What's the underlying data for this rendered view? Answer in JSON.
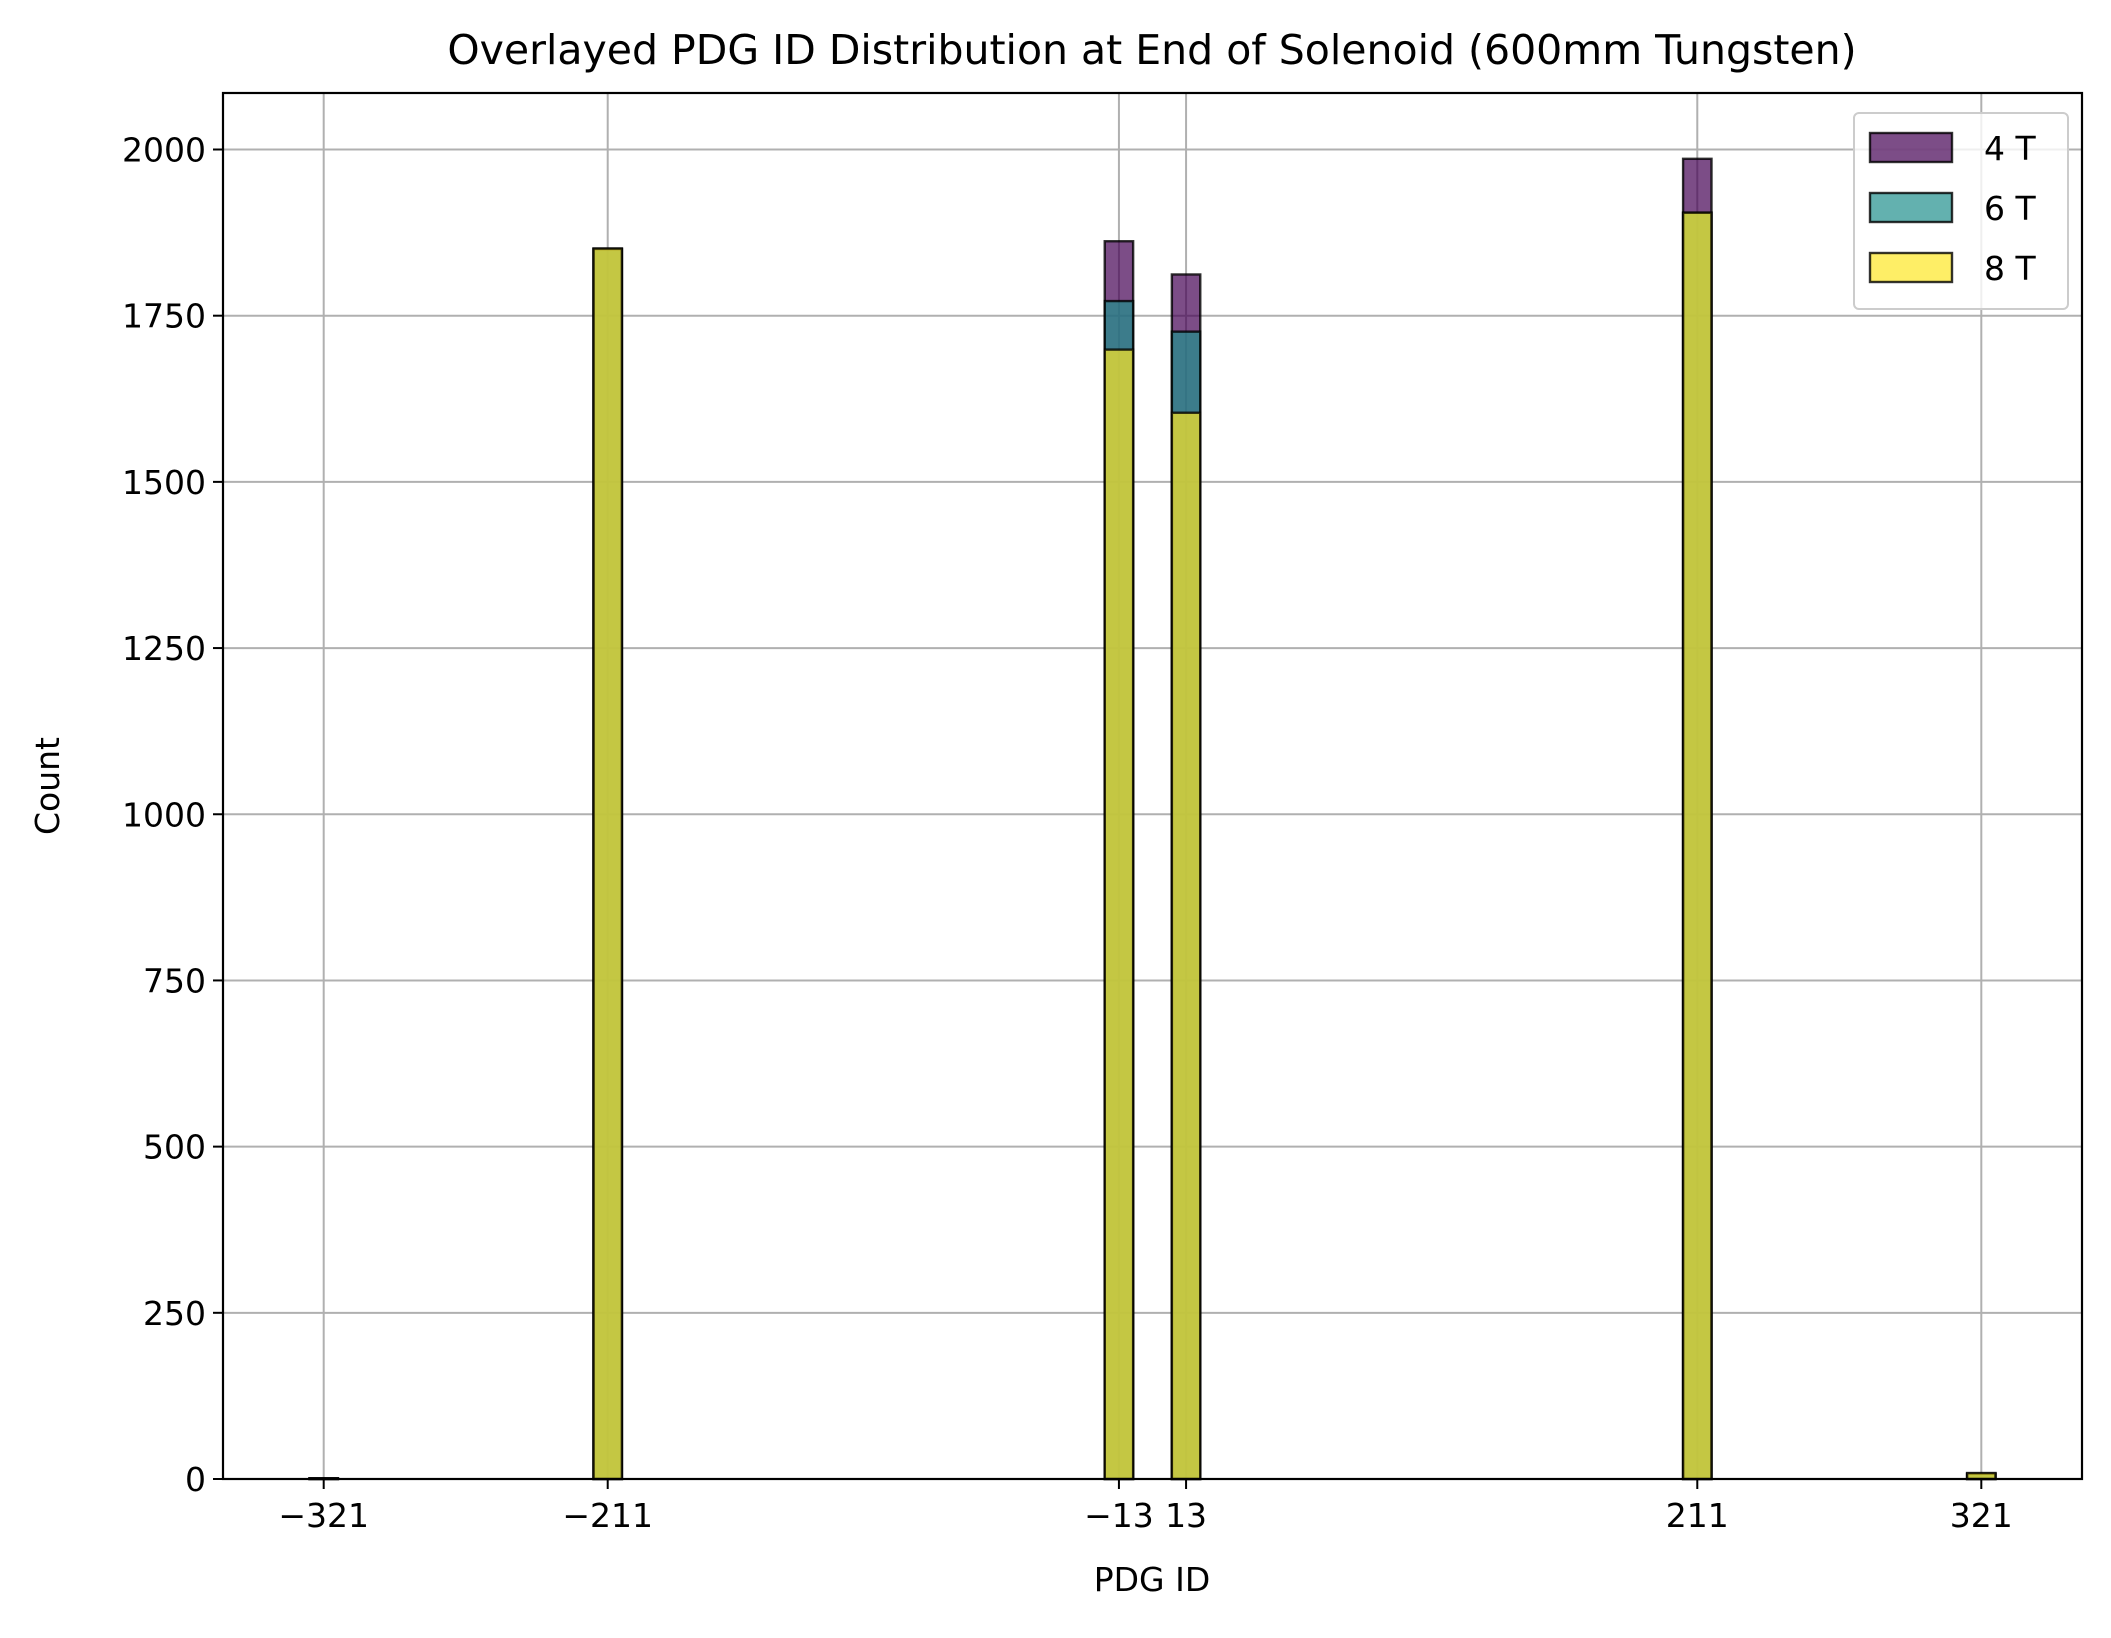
{
  "chart_data": {
    "type": "bar",
    "title": "Overlayed PDG ID Distribution at End of Solenoid (600mm Tungsten)",
    "xlabel": "PDG ID",
    "ylabel": "Count",
    "xticks": [
      -321,
      -211,
      -13,
      13,
      211,
      321
    ],
    "xtick_labels": [
      "−321",
      "−211",
      "−13",
      "13",
      "211",
      "321"
    ],
    "yticks": [
      0,
      250,
      500,
      750,
      1000,
      1250,
      1500,
      1750,
      2000
    ],
    "ylim": [
      0,
      2085
    ],
    "xlim": [
      -360,
      360
    ],
    "grid": true,
    "legend_position": "top-right",
    "bin_width": 11,
    "categories": [
      -321,
      -211,
      -13,
      13,
      211,
      321
    ],
    "series": [
      {
        "name": "4 T",
        "color": "#440154",
        "values": [
          1,
          1851,
          1862,
          1812,
          1986,
          8
        ]
      },
      {
        "name": "6 T",
        "color": "#21908d",
        "values": [
          1,
          1850,
          1772,
          1726,
          1905,
          8
        ]
      },
      {
        "name": "8 T",
        "color": "#fde725",
        "values": [
          1,
          1851,
          1699,
          1604,
          1905,
          9
        ]
      }
    ],
    "bar_alpha": 0.7,
    "bar_edge_color": "#000000"
  }
}
